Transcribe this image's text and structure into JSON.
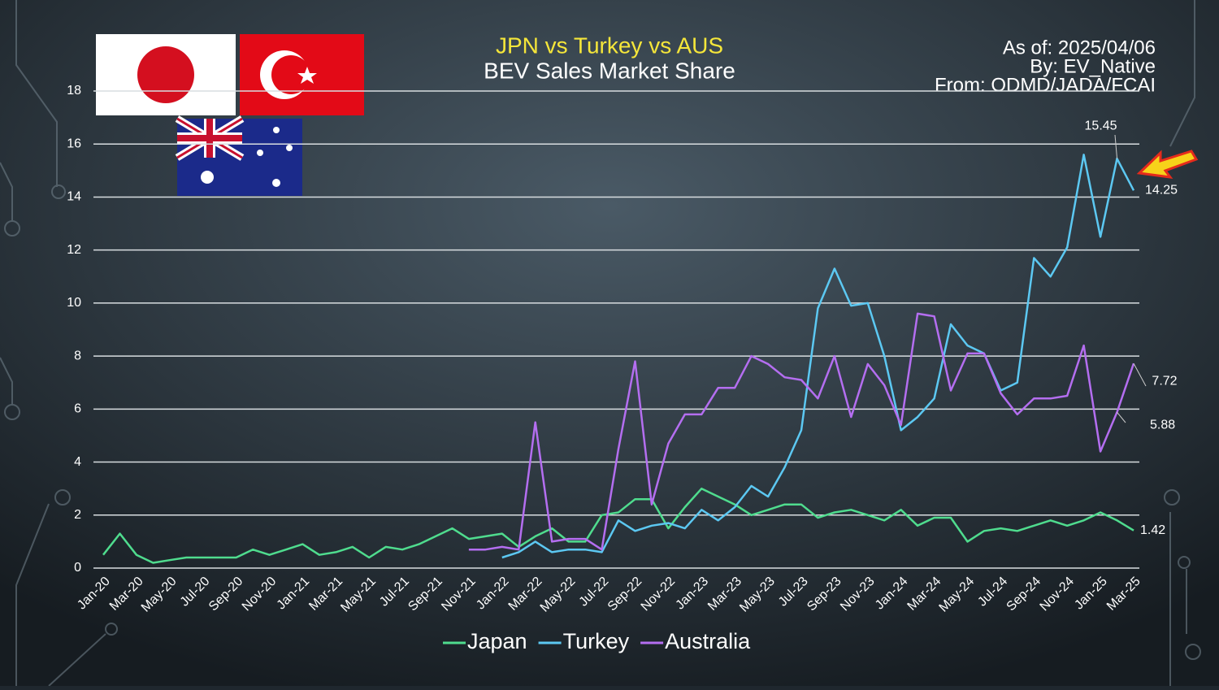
{
  "chart_data": {
    "type": "line",
    "title": "JPN vs Turkey vs AUS",
    "subtitle": "BEV Sales Market Share",
    "annotations": [
      "As of: 2025/04/06",
      "By: EV_Native",
      "From: ODMD/JADA/FCAI"
    ],
    "categories": [
      "Jan-20",
      null,
      "Mar-20",
      null,
      "May-20",
      null,
      "Jul-20",
      null,
      "Sep-20",
      null,
      "Nov-20",
      null,
      "Jan-21",
      null,
      "Mar-21",
      null,
      "May-21",
      null,
      "Jul-21",
      null,
      "Sep-21",
      null,
      "Nov-21",
      null,
      "Jan-22",
      null,
      "Mar-22",
      null,
      "May-22",
      null,
      "Jul-22",
      null,
      "Sep-22",
      null,
      "Nov-22",
      null,
      "Jan-23",
      null,
      "Mar-23",
      null,
      "May-23",
      null,
      "Jul-23",
      null,
      "Sep-23",
      null,
      "Nov-23",
      null,
      "Jan-24",
      null,
      "Mar-24",
      null,
      "May-24",
      null,
      "Jul-24",
      null,
      "Sep-24",
      null,
      "Nov-24",
      null,
      "Jan-25",
      null,
      "Mar-25"
    ],
    "series": [
      {
        "name": "Japan",
        "color": "#4fdc8e",
        "values": [
          0.5,
          1.3,
          0.5,
          0.2,
          0.3,
          0.4,
          0.4,
          0.4,
          0.4,
          0.7,
          0.5,
          0.7,
          0.9,
          0.5,
          0.6,
          0.8,
          0.4,
          0.8,
          0.7,
          0.9,
          1.2,
          1.5,
          1.1,
          1.2,
          1.3,
          0.8,
          1.2,
          1.5,
          1.0,
          1.0,
          2.0,
          2.1,
          2.6,
          2.6,
          1.5,
          2.3,
          3.0,
          2.7,
          2.4,
          2.0,
          2.2,
          2.4,
          2.4,
          1.9,
          2.1,
          2.2,
          2.0,
          1.8,
          2.2,
          1.6,
          1.9,
          1.9,
          1.0,
          1.4,
          1.5,
          1.4,
          1.6,
          1.8,
          1.6,
          1.8,
          2.1,
          1.8,
          1.42
        ]
      },
      {
        "name": "Turkey",
        "color": "#5cc8f2",
        "values": [
          null,
          null,
          null,
          null,
          null,
          null,
          null,
          null,
          null,
          null,
          null,
          null,
          null,
          null,
          null,
          null,
          null,
          null,
          null,
          null,
          null,
          null,
          null,
          null,
          0.4,
          0.6,
          1.0,
          0.6,
          0.7,
          0.7,
          0.6,
          1.8,
          1.4,
          1.6,
          1.7,
          1.5,
          2.2,
          1.8,
          2.3,
          3.1,
          2.7,
          3.8,
          5.2,
          9.8,
          11.3,
          9.9,
          10.0,
          8.0,
          5.2,
          5.7,
          6.4,
          9.2,
          8.4,
          8.1,
          6.7,
          7.0,
          11.7,
          11.0,
          12.1,
          15.6,
          12.5,
          15.45,
          14.25
        ]
      },
      {
        "name": "Australia",
        "color": "#b46ef0",
        "values": [
          null,
          null,
          null,
          null,
          null,
          null,
          null,
          null,
          null,
          null,
          null,
          null,
          null,
          null,
          null,
          null,
          null,
          null,
          null,
          null,
          null,
          null,
          0.7,
          0.7,
          0.8,
          0.7,
          5.5,
          1.0,
          1.1,
          1.1,
          0.7,
          4.5,
          7.8,
          2.4,
          4.7,
          5.8,
          5.8,
          6.8,
          6.8,
          8.0,
          7.7,
          7.2,
          7.1,
          6.4,
          8.0,
          5.7,
          7.7,
          6.9,
          5.4,
          9.6,
          9.5,
          6.7,
          8.1,
          8.1,
          6.6,
          5.8,
          6.4,
          6.4,
          6.5,
          8.4,
          4.4,
          5.88,
          7.72
        ]
      }
    ],
    "ylim": [
      0,
      18
    ],
    "yticks": [
      0,
      2,
      4,
      6,
      8,
      10,
      12,
      14,
      16,
      18
    ],
    "grid": true
  }
}
